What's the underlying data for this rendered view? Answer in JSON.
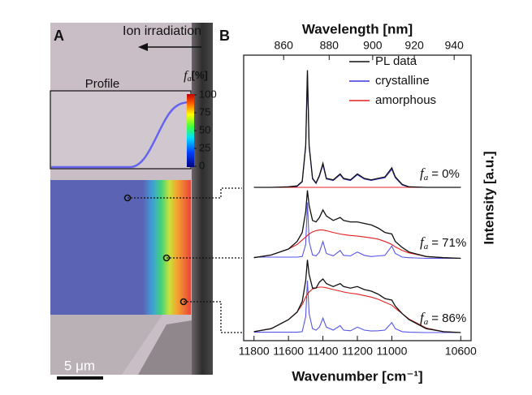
{
  "panel_a": {
    "label": "A",
    "arrow_text": "Ion irradiation",
    "profile_label": "Profile",
    "colorbar": {
      "symbol": "f",
      "sub": "a",
      "unit": "[%]",
      "ylim": [
        0,
        100
      ],
      "ticks": [
        0,
        25,
        50,
        75,
        100
      ]
    },
    "scale_bar": "5 μm"
  },
  "panel_b": {
    "label": "B"
  },
  "chart_data": {
    "type": "line",
    "x_label": "Wavenumber [cm⁻¹]",
    "x2_label": "Wavelength [nm]",
    "y_label": "Intensity [a.u.]",
    "xlim": [
      11860,
      10540
    ],
    "ylim": [
      0,
      9.5
    ],
    "xticks": [
      11800,
      11600,
      11400,
      11200,
      11000,
      10600
    ],
    "x2ticks": [
      860,
      880,
      900,
      920,
      940
    ],
    "legend": "upper right",
    "x": [
      11800,
      11700,
      11600,
      11550,
      11520,
      11500,
      11490,
      11480,
      11460,
      11440,
      11420,
      11400,
      11380,
      11340,
      11300,
      11280,
      11240,
      11200,
      11160,
      11120,
      11080,
      11040,
      11000,
      10980,
      10940,
      10900,
      10800,
      10700,
      10600
    ],
    "series": [
      {
        "name": "PL data",
        "color": "#111111",
        "values": [
          5.1,
          5.1,
          5.12,
          5.15,
          5.3,
          6.5,
          9.0,
          6.5,
          5.4,
          5.25,
          5.5,
          5.9,
          5.4,
          5.35,
          5.55,
          5.4,
          5.35,
          5.55,
          5.4,
          5.35,
          5.4,
          5.45,
          5.75,
          5.45,
          5.2,
          5.12,
          5.1,
          5.1,
          5.1
        ]
      },
      {
        "name": "crystalline",
        "color": "#3a3adf",
        "values": [
          5.1,
          5.1,
          5.11,
          5.13,
          5.28,
          6.45,
          8.9,
          6.45,
          5.38,
          5.23,
          5.47,
          5.85,
          5.38,
          5.33,
          5.52,
          5.38,
          5.33,
          5.52,
          5.38,
          5.33,
          5.38,
          5.42,
          5.7,
          5.42,
          5.18,
          5.11,
          5.1,
          5.1,
          5.1
        ]
      },
      {
        "name": "amorphous",
        "color": "#e02020",
        "values": [
          5.1,
          5.1,
          5.1,
          5.1,
          5.1,
          5.1,
          5.1,
          5.1,
          5.1,
          5.1,
          5.1,
          5.1,
          5.1,
          5.1,
          5.1,
          5.1,
          5.1,
          5.1,
          5.1,
          5.1,
          5.1,
          5.1,
          5.1,
          5.1,
          5.1,
          5.1,
          5.1,
          5.1,
          5.1
        ]
      },
      {
        "name": "PL data",
        "color": "#111111",
        "values": [
          2.76,
          2.85,
          3.05,
          3.3,
          3.6,
          4.3,
          5.0,
          4.5,
          4.0,
          3.95,
          4.1,
          4.35,
          4.15,
          4.0,
          4.1,
          4.0,
          3.95,
          3.95,
          3.9,
          3.85,
          3.75,
          3.6,
          3.55,
          3.3,
          3.1,
          2.95,
          2.8,
          2.76,
          2.74
        ]
      },
      {
        "name": "crystalline",
        "color": "#5555e6",
        "values": [
          2.78,
          2.78,
          2.78,
          2.78,
          2.8,
          3.2,
          4.6,
          3.3,
          2.85,
          2.82,
          2.95,
          3.3,
          2.9,
          2.82,
          3.0,
          2.84,
          2.82,
          2.95,
          2.84,
          2.8,
          2.82,
          2.84,
          3.15,
          2.9,
          2.78,
          2.76,
          2.74,
          2.74,
          2.74
        ]
      },
      {
        "name": "amorphous",
        "color": "#e02020",
        "values": [
          2.76,
          2.85,
          3.05,
          3.2,
          3.35,
          3.45,
          3.5,
          3.55,
          3.62,
          3.66,
          3.68,
          3.68,
          3.66,
          3.6,
          3.55,
          3.53,
          3.5,
          3.48,
          3.45,
          3.42,
          3.38,
          3.3,
          3.2,
          3.12,
          3.0,
          2.92,
          2.8,
          2.76,
          2.74
        ]
      },
      {
        "name": "PL data",
        "color": "#111111",
        "values": [
          0.3,
          0.4,
          0.7,
          0.95,
          1.3,
          2.0,
          2.69,
          2.2,
          1.75,
          1.75,
          1.95,
          2.05,
          1.9,
          1.8,
          1.9,
          1.8,
          1.75,
          1.8,
          1.7,
          1.65,
          1.55,
          1.4,
          1.35,
          1.15,
          0.9,
          0.7,
          0.4,
          0.3,
          0.27
        ]
      },
      {
        "name": "crystalline",
        "color": "#5555e6",
        "values": [
          0.28,
          0.28,
          0.28,
          0.28,
          0.3,
          0.8,
          2.0,
          0.9,
          0.4,
          0.35,
          0.45,
          0.75,
          0.45,
          0.35,
          0.5,
          0.35,
          0.33,
          0.45,
          0.35,
          0.32,
          0.33,
          0.35,
          0.6,
          0.4,
          0.3,
          0.28,
          0.27,
          0.27,
          0.27
        ]
      },
      {
        "name": "amorphous",
        "color": "#e02020",
        "values": [
          0.3,
          0.4,
          0.7,
          0.95,
          1.2,
          1.45,
          1.55,
          1.62,
          1.72,
          1.76,
          1.78,
          1.78,
          1.76,
          1.7,
          1.65,
          1.62,
          1.58,
          1.55,
          1.5,
          1.45,
          1.38,
          1.28,
          1.18,
          1.08,
          0.9,
          0.72,
          0.42,
          0.3,
          0.27
        ]
      }
    ],
    "annotations": [
      {
        "symbol": "f",
        "sub": "a",
        "text": "= 0%"
      },
      {
        "symbol": "f",
        "sub": "a",
        "text": "= 71%"
      },
      {
        "symbol": "f",
        "sub": "a",
        "text": "= 86%"
      }
    ]
  }
}
